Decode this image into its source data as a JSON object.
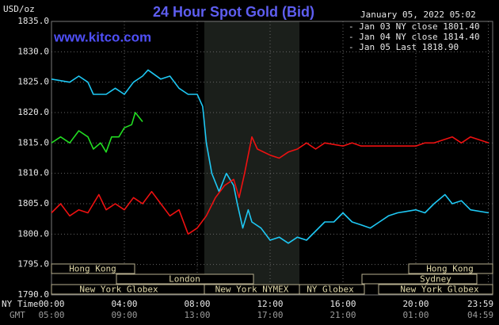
{
  "chart_data": {
    "type": "line",
    "title": "24 Hour Spot Gold (Bid)",
    "unit_label": "USD/oz",
    "timestamp": "January 05, 2022 05:02",
    "watermark": "www.kitco.com",
    "ny_time_label": "NY Time",
    "gmt_label": "GMT",
    "xlim": [
      0,
      24
    ],
    "ylim": [
      1790,
      1835
    ],
    "xticks": [
      {
        "value": 0,
        "label": "00:00"
      },
      {
        "value": 4,
        "label": "04:00"
      },
      {
        "value": 8,
        "label": "08:00"
      },
      {
        "value": 12,
        "label": "12:00"
      },
      {
        "value": 16,
        "label": "16:00"
      },
      {
        "value": 20,
        "label": "20:00"
      },
      {
        "value": 23.98,
        "label": "23:59"
      }
    ],
    "gmt_tick_labels": [
      "05:00",
      "09:00",
      "13:00",
      "17:00",
      "21:00",
      "01:00",
      "04:59"
    ],
    "yticks": [
      {
        "value": 1790,
        "label": "1790.0"
      },
      {
        "value": 1795,
        "label": "1795.0"
      },
      {
        "value": 1800,
        "label": "1800.0"
      },
      {
        "value": 1805,
        "label": "1805.0"
      },
      {
        "value": 1810,
        "label": "1810.0"
      },
      {
        "value": 1815,
        "label": "1815.0"
      },
      {
        "value": 1820,
        "label": "1820.0"
      },
      {
        "value": 1825,
        "label": "1825.0"
      },
      {
        "value": 1830,
        "label": "1830.0"
      },
      {
        "value": 1835,
        "label": "1835.0"
      }
    ],
    "grid": true,
    "sessions": [
      "Hong Kong",
      "London",
      "Sydney",
      "New York Globex",
      "New York NYMEX",
      "NY Globex"
    ],
    "series": [
      {
        "name": "- Jan 03 NY close 1801.40",
        "color": "#1ec8f4",
        "x": [
          0,
          1,
          1.5,
          2,
          2.3,
          3,
          3.5,
          4,
          4.5,
          5,
          5.3,
          6,
          6.5,
          7,
          7.5,
          8,
          8.3,
          8.5,
          8.8,
          9.2,
          9.6,
          10,
          10.2,
          10.5,
          10.8,
          11,
          11.5,
          12,
          12.5,
          13,
          13.5,
          14,
          14.5,
          15,
          15.5,
          16,
          16.5,
          17,
          17.5,
          18,
          18.5,
          19,
          20,
          20.5,
          21,
          21.6,
          22,
          22.5,
          23,
          24
        ],
        "values": [
          1825.5,
          1825,
          1826,
          1825,
          1823,
          1823,
          1824,
          1823,
          1825,
          1826,
          1827,
          1825.5,
          1826,
          1824,
          1823,
          1823,
          1821,
          1815,
          1810,
          1807,
          1810,
          1808,
          1805,
          1801,
          1804,
          1802,
          1801,
          1799,
          1799.5,
          1798.5,
          1799.5,
          1799,
          1800.5,
          1802,
          1802,
          1803.5,
          1802,
          1801.5,
          1801,
          1802,
          1803,
          1803.5,
          1804,
          1803.5,
          1805,
          1806.5,
          1805,
          1805.5,
          1804,
          1803.5
        ]
      },
      {
        "name": "- Jan 04 NY close 1814.40",
        "color": "#ee1111",
        "x": [
          0,
          0.5,
          1,
          1.5,
          2,
          2.6,
          3,
          3.5,
          4,
          4.5,
          5,
          5.5,
          6,
          6.5,
          7,
          7.5,
          8,
          8.5,
          9,
          9.5,
          10,
          10.3,
          10.6,
          11,
          11.3,
          12,
          12.5,
          13,
          13.5,
          14,
          14.5,
          15,
          16,
          16.5,
          17,
          18,
          19,
          20,
          20.5,
          21,
          22,
          22.5,
          23,
          24
        ],
        "values": [
          1803.5,
          1805,
          1803,
          1804,
          1803.5,
          1806.5,
          1804,
          1805,
          1804,
          1806,
          1805,
          1807,
          1805,
          1803,
          1804,
          1800,
          1801,
          1803,
          1806,
          1808,
          1809,
          1806,
          1810,
          1816,
          1814,
          1813,
          1812.5,
          1813.5,
          1814,
          1815,
          1814,
          1815,
          1814.5,
          1815,
          1814.5,
          1814.5,
          1814.5,
          1814.5,
          1815,
          1815,
          1816,
          1815,
          1816,
          1815
        ]
      },
      {
        "name": "- Jan 05 Last 1818.90",
        "color": "#22dd22",
        "x": [
          0,
          0.5,
          1,
          1.5,
          2,
          2.3,
          2.7,
          3,
          3.3,
          3.7,
          4,
          4.4,
          4.6,
          5
        ],
        "values": [
          1815,
          1816,
          1815,
          1817,
          1816,
          1814,
          1815,
          1813.5,
          1816,
          1816,
          1817.5,
          1818,
          1820,
          1818.5
        ]
      }
    ]
  }
}
